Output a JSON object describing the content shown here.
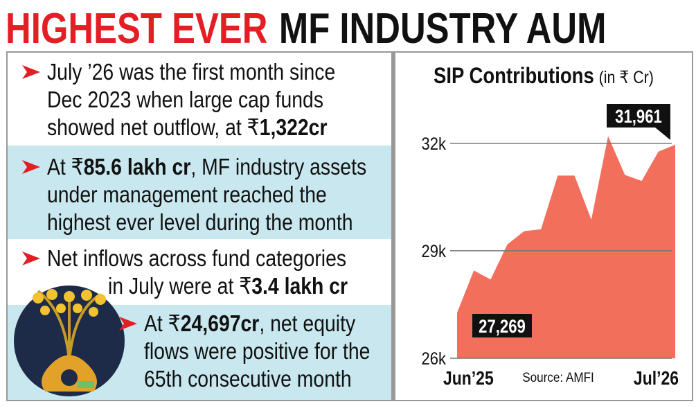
{
  "headline": {
    "highlight": "HIGHEST EVER",
    "rest": "MF INDUSTRY AUM"
  },
  "points": [
    {
      "lines": [
        [
          {
            "text": "July ’26 was the first month since"
          }
        ],
        [
          {
            "text": "Dec 2023 when large cap funds"
          }
        ],
        [
          {
            "text": "showed net outflow, at ₹"
          },
          {
            "text": "1,322cr",
            "bold": true
          }
        ]
      ]
    },
    {
      "lines": [
        [
          {
            "text": "At ₹"
          },
          {
            "text": "85.6 lakh cr",
            "bold": true
          },
          {
            "text": ", MF industry assets"
          }
        ],
        [
          {
            "text": "under management reached the"
          }
        ],
        [
          {
            "text": "highest ever level during the month"
          }
        ]
      ]
    },
    {
      "lines": [
        [
          {
            "text": "Net inflows across fund categories"
          }
        ],
        [
          {
            "text": "in July were at ₹"
          },
          {
            "text": "3.4 lakh cr",
            "bold": true
          }
        ]
      ]
    },
    {
      "lines": [
        [
          {
            "text": "At ₹"
          },
          {
            "text": "24,697cr",
            "bold": true
          },
          {
            "text": ", net equity"
          }
        ],
        [
          {
            "text": "flows were positive for the"
          }
        ],
        [
          {
            "text": "65th consecutive month"
          }
        ]
      ]
    }
  ],
  "chart_data": {
    "type": "area",
    "title": "SIP Contributions",
    "subtitle": "(in ₹ Cr)",
    "source": "Source: AMFI",
    "categories": [
      "Jun’25",
      null,
      null,
      null,
      null,
      null,
      null,
      null,
      null,
      null,
      null,
      null,
      null,
      "Jul’26"
    ],
    "values": [
      27269,
      28450,
      28200,
      29180,
      29550,
      29600,
      31100,
      31100,
      29870,
      32200,
      31120,
      30950,
      31770,
      31961
    ],
    "value_labels": [
      "27,269",
      null,
      null,
      null,
      null,
      null,
      null,
      null,
      null,
      null,
      null,
      null,
      null,
      "31,961"
    ],
    "color": "#f26f5c",
    "ylim": [
      26000,
      33100
    ],
    "yticks": [
      {
        "value": 26000,
        "label": "26k"
      },
      {
        "value": 29000,
        "label": "29k"
      },
      {
        "value": 32000,
        "label": "32k"
      }
    ],
    "grid": true
  }
}
